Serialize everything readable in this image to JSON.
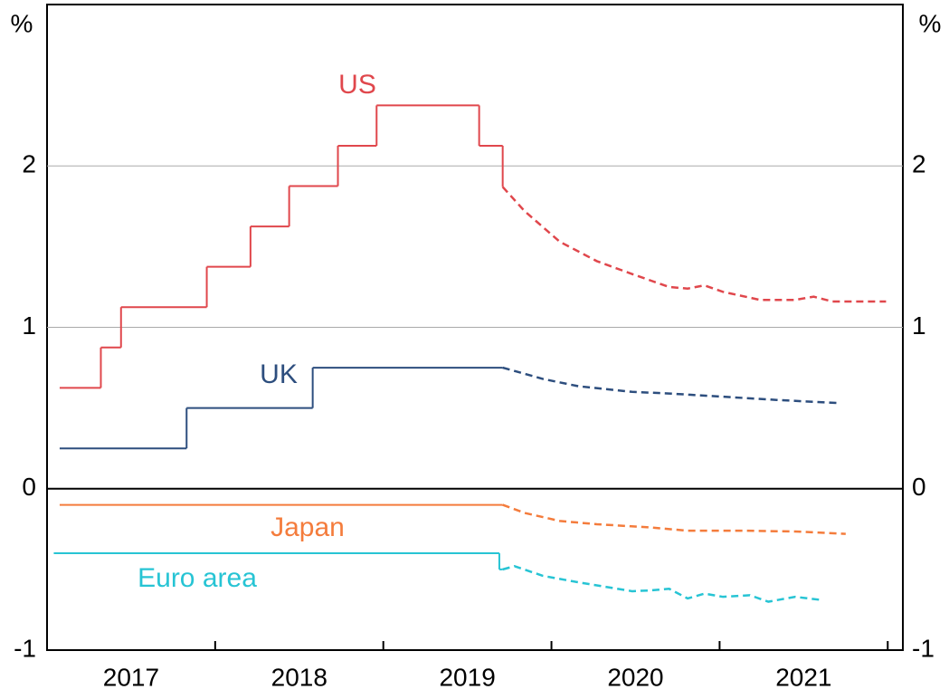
{
  "chart_data": {
    "type": "step-line",
    "yunit": "%",
    "xlim": [
      2017,
      2022.09
    ],
    "xticks": [
      {
        "value": 2017.5,
        "label": "2017"
      },
      {
        "value": 2018.5,
        "label": "2018"
      },
      {
        "value": 2019.5,
        "label": "2019"
      },
      {
        "value": 2020.5,
        "label": "2020"
      },
      {
        "value": 2021.5,
        "label": "2021"
      }
    ],
    "xtick_marks": [
      2018,
      2019,
      2020,
      2021,
      2022
    ],
    "ylim": [
      -1,
      3
    ],
    "yticks": [
      -1,
      0,
      1,
      2
    ],
    "grid": true,
    "series": [
      {
        "name": "US",
        "color": "#e0474c",
        "x": [
          2017.075,
          2017.32,
          2017.44,
          2017.95,
          2018.21,
          2018.44,
          2018.73,
          2018.96,
          2019.57,
          2019.71
        ],
        "values": [
          0.625,
          0.875,
          1.125,
          1.375,
          1.625,
          1.875,
          2.125,
          2.375,
          2.125,
          1.875
        ],
        "forecast_x": [
          2019.71,
          2019.84,
          2020.05,
          2020.27,
          2020.48,
          2020.7,
          2020.81,
          2020.91,
          2021.02,
          2021.24,
          2021.45,
          2021.56,
          2021.67,
          2021.99
        ],
        "forecast_values": [
          1.87,
          1.72,
          1.53,
          1.41,
          1.33,
          1.25,
          1.24,
          1.26,
          1.22,
          1.17,
          1.17,
          1.19,
          1.16,
          1.16
        ]
      },
      {
        "name": "UK",
        "color": "#2d4e7e",
        "x": [
          2017.075,
          2017.83,
          2018.58
        ],
        "values": [
          0.25,
          0.5,
          0.75
        ],
        "forecast_x": [
          2019.71,
          2019.95,
          2020.16,
          2020.48,
          2020.7,
          2021.02,
          2021.34,
          2021.72
        ],
        "forecast_values": [
          0.75,
          0.68,
          0.635,
          0.6,
          0.59,
          0.57,
          0.55,
          0.53
        ]
      },
      {
        "name": "Japan",
        "color": "#f47c3c",
        "x": [
          2017.075
        ],
        "values": [
          -0.1
        ],
        "forecast_x": [
          2019.71,
          2019.84,
          2020.05,
          2020.27,
          2020.59,
          2020.81,
          2021.13,
          2021.45,
          2021.75
        ],
        "forecast_values": [
          -0.1,
          -0.15,
          -0.2,
          -0.22,
          -0.24,
          -0.26,
          -0.26,
          -0.265,
          -0.28
        ]
      },
      {
        "name": "Euro area",
        "color": "#27c4d4",
        "x": [
          2017.04,
          2019.69
        ],
        "values": [
          -0.4,
          -0.5
        ],
        "forecast_x": [
          2019.71,
          2019.78,
          2019.95,
          2020.16,
          2020.48,
          2020.59,
          2020.7,
          2020.81,
          2020.91,
          2021.02,
          2021.18,
          2021.29,
          2021.45,
          2021.61
        ],
        "forecast_values": [
          -0.5,
          -0.48,
          -0.54,
          -0.58,
          -0.635,
          -0.63,
          -0.62,
          -0.68,
          -0.65,
          -0.67,
          -0.66,
          -0.7,
          -0.67,
          -0.69
        ]
      }
    ]
  }
}
